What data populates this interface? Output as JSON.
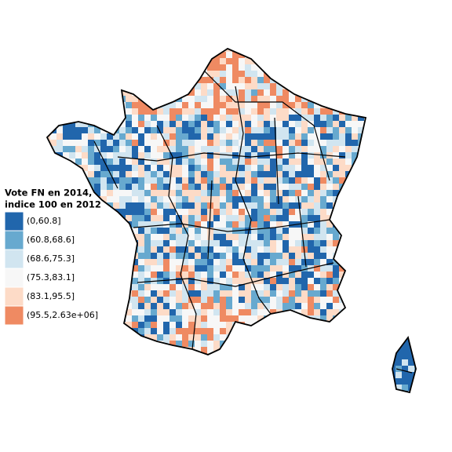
{
  "legend": {
    "title": [
      "Vote FN en 2014,",
      "indice 100 en 2012"
    ],
    "items": [
      {
        "label": "(0,60.8]",
        "color": "#2166ac"
      },
      {
        "label": "(60.8,68.6]",
        "color": "#67a9cf"
      },
      {
        "label": "(68.6,75.3]",
        "color": "#d1e5f0"
      },
      {
        "label": "(75.3,83.1]",
        "color": "#f7f7f7"
      },
      {
        "label": "(83.1,95.5]",
        "color": "#fddbc7"
      },
      {
        "label": "(95.5,2.63e+06]",
        "color": "#ef8a62"
      }
    ]
  }
}
